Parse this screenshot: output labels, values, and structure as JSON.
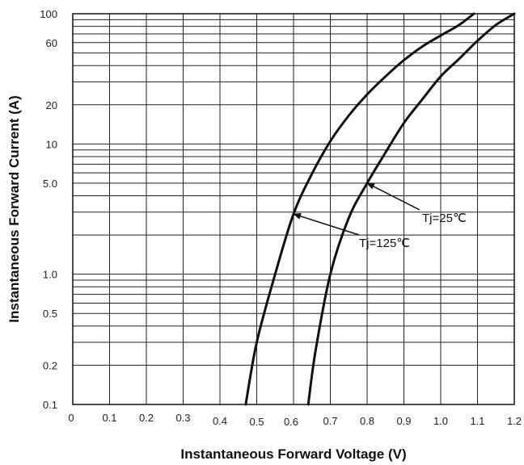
{
  "chart_data": {
    "type": "line",
    "xlabel": "Instantaneous Forward Voltage (V)",
    "ylabel": "Instantaneous Forward Current (A)",
    "xlim": [
      0,
      1.2
    ],
    "ylim": [
      0.1,
      100
    ],
    "y_scale": "log",
    "grid": true,
    "x_ticks": [
      "0",
      "0.1",
      "0.2",
      "0.3",
      "0.4",
      "0.5",
      "0.6",
      "0.7",
      "0.8",
      "0.9",
      "1.0",
      "1.1",
      "1.2"
    ],
    "y_tick_labels": [
      {
        "value": 100,
        "label": "100"
      },
      {
        "value": 60,
        "label": "60"
      },
      {
        "value": 20,
        "label": "20"
      },
      {
        "value": 10,
        "label": "10"
      },
      {
        "value": 5,
        "label": "5.0"
      },
      {
        "value": 1,
        "label": "1.0"
      },
      {
        "value": 0.5,
        "label": "0.5"
      },
      {
        "value": 0.2,
        "label": "0.2"
      },
      {
        "value": 0.1,
        "label": "0.1"
      }
    ],
    "series": [
      {
        "name": "Tj=125℃",
        "points": [
          [
            0.47,
            0.1
          ],
          [
            0.5,
            0.3
          ],
          [
            0.55,
            1.0
          ],
          [
            0.6,
            2.9
          ],
          [
            0.65,
            5.9
          ],
          [
            0.7,
            10.5
          ],
          [
            0.75,
            16.5
          ],
          [
            0.8,
            24
          ],
          [
            0.85,
            33
          ],
          [
            0.9,
            44
          ],
          [
            0.95,
            56
          ],
          [
            1.0,
            68
          ],
          [
            1.05,
            82
          ],
          [
            1.09,
            100
          ]
        ]
      },
      {
        "name": "Tj=25℃",
        "points": [
          [
            0.64,
            0.1
          ],
          [
            0.66,
            0.26
          ],
          [
            0.7,
            1.0
          ],
          [
            0.75,
            2.7
          ],
          [
            0.8,
            5.0
          ],
          [
            0.85,
            8.6
          ],
          [
            0.9,
            14.5
          ],
          [
            0.95,
            22
          ],
          [
            1.0,
            33
          ],
          [
            1.05,
            45
          ],
          [
            1.1,
            62
          ],
          [
            1.15,
            82
          ],
          [
            1.2,
            100
          ]
        ]
      }
    ],
    "annotations": [
      {
        "text": "Tj=25℃",
        "arrow_to": [
          0.8,
          5.0
        ]
      },
      {
        "text": "Tj=125℃",
        "arrow_to": [
          0.6,
          2.9
        ]
      }
    ]
  }
}
